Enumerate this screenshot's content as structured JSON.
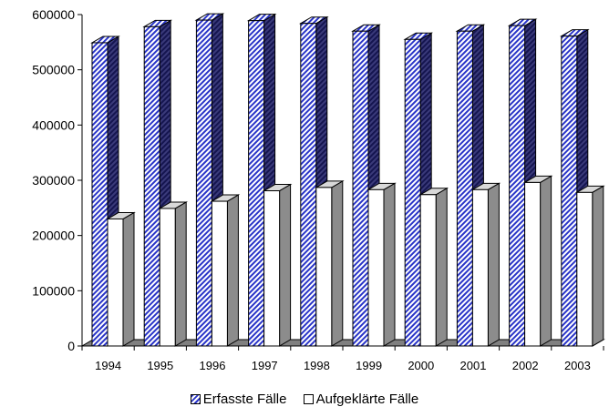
{
  "chart_data": {
    "type": "bar",
    "title": "",
    "xlabel": "",
    "ylabel": "",
    "categories": [
      "1994",
      "1995",
      "1996",
      "1997",
      "1998",
      "1999",
      "2000",
      "2001",
      "2002",
      "2003"
    ],
    "series": [
      {
        "name": "Erfasste Fälle",
        "values": [
          549000,
          578000,
          590000,
          589000,
          584000,
          570000,
          555000,
          570000,
          580000,
          561000
        ],
        "color": "#2a35c8",
        "pattern": "diagonal-hatch"
      },
      {
        "name": "Aufgeklärte Fälle",
        "values": [
          230000,
          249000,
          262000,
          281000,
          287000,
          283000,
          274000,
          283000,
          296000,
          278000
        ],
        "color": "#ffffff"
      }
    ],
    "ylim": [
      0,
      600000
    ],
    "yticks": [
      "0",
      "100000",
      "200000",
      "300000",
      "400000",
      "500000",
      "600000"
    ],
    "legend_position": "bottom",
    "style": "3d-bar",
    "floor_color": "#808080",
    "grid": false
  }
}
